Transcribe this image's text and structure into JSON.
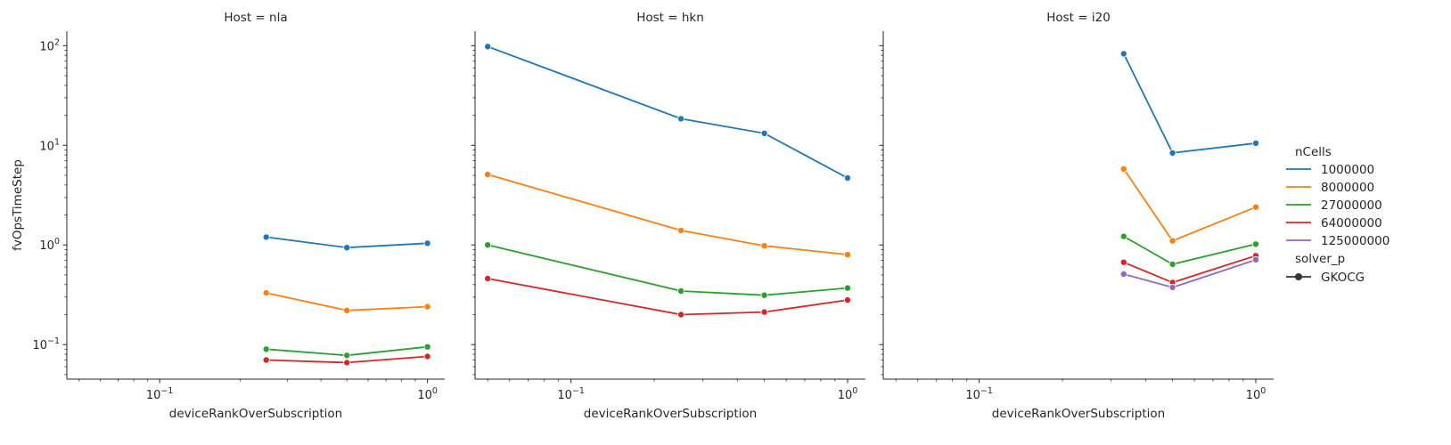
{
  "chart_data": {
    "type": "line",
    "xlabel": "deviceRankOverSubscription",
    "ylabel": "fvOpsTimeStep",
    "xscale": "log",
    "yscale": "log",
    "xlim": [
      0.045,
      1.16
    ],
    "ylim": [
      0.045,
      140
    ],
    "shared_y": true,
    "x_ticks": [
      {
        "value": 0.1,
        "base": "10",
        "exp": "−1"
      },
      {
        "value": 1,
        "base": "10",
        "exp": "0"
      }
    ],
    "y_ticks": [
      {
        "value": 0.1,
        "base": "10",
        "exp": "−1"
      },
      {
        "value": 1,
        "base": "10",
        "exp": "0"
      },
      {
        "value": 10,
        "base": "10",
        "exp": "1"
      },
      {
        "value": 100,
        "base": "10",
        "exp": "2"
      }
    ],
    "marker": "circle",
    "legend": {
      "placement": "right",
      "hue_title": "nCells",
      "style_title": "solver_p",
      "style_entries": [
        "GKOCG"
      ]
    },
    "series_colors": {
      "1000000": "#1f77b4",
      "8000000": "#ff7f0e",
      "27000000": "#2ca02c",
      "64000000": "#d62728",
      "125000000": "#9467bd"
    },
    "legend_series": [
      "1000000",
      "8000000",
      "27000000",
      "64000000",
      "125000000"
    ],
    "panels": [
      {
        "title": "Host = nla",
        "series": [
          {
            "name": "1000000",
            "x": [
              0.25,
              0.5,
              1.0
            ],
            "y": [
              1.2,
              0.94,
              1.04
            ]
          },
          {
            "name": "8000000",
            "x": [
              0.25,
              0.5,
              1.0
            ],
            "y": [
              0.33,
              0.22,
              0.24
            ]
          },
          {
            "name": "27000000",
            "x": [
              0.25,
              0.5,
              1.0
            ],
            "y": [
              0.09,
              0.078,
              0.095
            ]
          },
          {
            "name": "64000000",
            "x": [
              0.25,
              0.5,
              1.0
            ],
            "y": [
              0.07,
              0.066,
              0.076
            ]
          }
        ]
      },
      {
        "title": "Host = hkn",
        "series": [
          {
            "name": "1000000",
            "x": [
              0.05,
              0.25,
              0.5,
              1.0
            ],
            "y": [
              98,
              18.5,
              13.2,
              4.7
            ]
          },
          {
            "name": "8000000",
            "x": [
              0.05,
              0.25,
              0.5,
              1.0
            ],
            "y": [
              5.1,
              1.4,
              0.98,
              0.8
            ]
          },
          {
            "name": "27000000",
            "x": [
              0.05,
              0.25,
              0.5,
              1.0
            ],
            "y": [
              1.0,
              0.345,
              0.313,
              0.37
            ]
          },
          {
            "name": "64000000",
            "x": [
              0.05,
              0.25,
              0.5,
              1.0
            ],
            "y": [
              0.46,
              0.2,
              0.212,
              0.28
            ]
          }
        ]
      },
      {
        "title": "Host = i20",
        "series": [
          {
            "name": "1000000",
            "x": [
              0.333,
              0.5,
              1.0
            ],
            "y": [
              83,
              8.4,
              10.5
            ]
          },
          {
            "name": "8000000",
            "x": [
              0.333,
              0.5,
              1.0
            ],
            "y": [
              5.8,
              1.1,
              2.4
            ]
          },
          {
            "name": "27000000",
            "x": [
              0.333,
              0.5,
              1.0
            ],
            "y": [
              1.22,
              0.64,
              1.02
            ]
          },
          {
            "name": "64000000",
            "x": [
              0.333,
              0.5,
              1.0
            ],
            "y": [
              0.67,
              0.42,
              0.78
            ]
          },
          {
            "name": "125000000",
            "x": [
              0.333,
              0.5,
              1.0
            ],
            "y": [
              0.51,
              0.375,
              0.71
            ]
          }
        ]
      }
    ]
  }
}
